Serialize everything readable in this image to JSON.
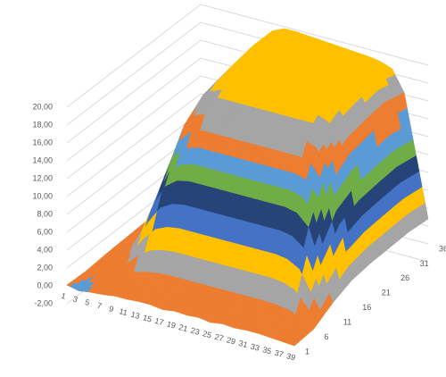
{
  "chart_data": {
    "type": "surface",
    "categories": [
      "1",
      "3",
      "5",
      "7",
      "9",
      "11",
      "13",
      "15",
      "17",
      "19",
      "21",
      "23",
      "25",
      "27",
      "29",
      "31",
      "33",
      "35",
      "37",
      "39"
    ],
    "series": [
      {
        "name": "1",
        "values": [
          0.1,
          -0.2,
          0.0,
          0.1,
          0.3,
          0.3,
          0.4,
          0.4,
          0.2,
          0.4,
          0.3,
          0.4,
          0.2,
          0.4,
          0.3,
          0.4,
          0.4,
          0.3,
          0.2,
          0.1
        ]
      },
      {
        "name": "6",
        "values": [
          0.0,
          0.1,
          0.2,
          0.7,
          1.3,
          1.7,
          1.9,
          2.0,
          2.0,
          2.0,
          2.0,
          2.0,
          2.0,
          2.0,
          2.0,
          2.0,
          1.9,
          1.7,
          1.0,
          0.3
        ]
      },
      {
        "name": "11",
        "values": [
          0.2,
          0.5,
          1.3,
          3.8,
          7.1,
          9.6,
          10.6,
          10.9,
          10.9,
          10.9,
          10.9,
          10.9,
          10.9,
          10.9,
          10.9,
          10.9,
          10.6,
          9.3,
          5.4,
          1.6
        ]
      },
      {
        "name": "16",
        "values": [
          0.3,
          0.8,
          2.0,
          5.9,
          10.9,
          14.8,
          16.3,
          16.8,
          16.8,
          16.8,
          16.8,
          16.8,
          16.8,
          16.8,
          16.8,
          16.8,
          16.3,
          14.3,
          8.4,
          2.5
        ]
      },
      {
        "name": "21",
        "values": [
          0.4,
          0.9,
          2.3,
          6.6,
          12.2,
          16.6,
          18.2,
          18.8,
          18.8,
          18.8,
          18.8,
          18.8,
          18.8,
          18.8,
          18.8,
          18.8,
          18.2,
          16.0,
          9.4,
          2.8
        ]
      },
      {
        "name": "26",
        "values": [
          0.4,
          1.0,
          2.3,
          6.8,
          12.6,
          17.1,
          18.8,
          19.4,
          19.4,
          19.4,
          19.4,
          19.4,
          19.4,
          19.4,
          19.4,
          19.4,
          18.8,
          16.5,
          9.7,
          2.9
        ]
      },
      {
        "name": "31",
        "values": [
          0.4,
          1.0,
          2.4,
          6.9,
          12.9,
          17.4,
          19.2,
          19.8,
          19.8,
          19.8,
          19.8,
          19.8,
          19.8,
          19.8,
          19.8,
          19.8,
          19.2,
          16.8,
          9.9,
          3.0
        ]
      },
      {
        "name": "36",
        "values": [
          0.4,
          1.0,
          2.4,
          6.9,
          12.9,
          17.4,
          19.2,
          19.8,
          19.8,
          19.7,
          19.6,
          19.5,
          19.4,
          19.3,
          19.2,
          19.0,
          18.5,
          16.2,
          9.5,
          2.8
        ]
      }
    ],
    "ylim": [
      -2,
      20
    ],
    "yticks": [
      {
        "value": -2,
        "label": "-2,00"
      },
      {
        "value": 0,
        "label": "0,00"
      },
      {
        "value": 2,
        "label": "2,00"
      },
      {
        "value": 4,
        "label": "4,00"
      },
      {
        "value": 6,
        "label": "6,00"
      },
      {
        "value": 8,
        "label": "8,00"
      },
      {
        "value": 10,
        "label": "10,00"
      },
      {
        "value": 12,
        "label": "12,00"
      },
      {
        "value": 14,
        "label": "14,00"
      },
      {
        "value": 16,
        "label": "16,00"
      },
      {
        "value": 18,
        "label": "18,00"
      },
      {
        "value": 20,
        "label": "20,00"
      }
    ],
    "band_colors": [
      "#5b9bd5",
      "#ed7d31",
      "#a5a5a5",
      "#ffc000",
      "#4472c4",
      "#264478",
      "#70ad47",
      "#5b9bd5",
      "#ed7d31",
      "#a5a5a5",
      "#ffc000"
    ],
    "grid": true
  }
}
